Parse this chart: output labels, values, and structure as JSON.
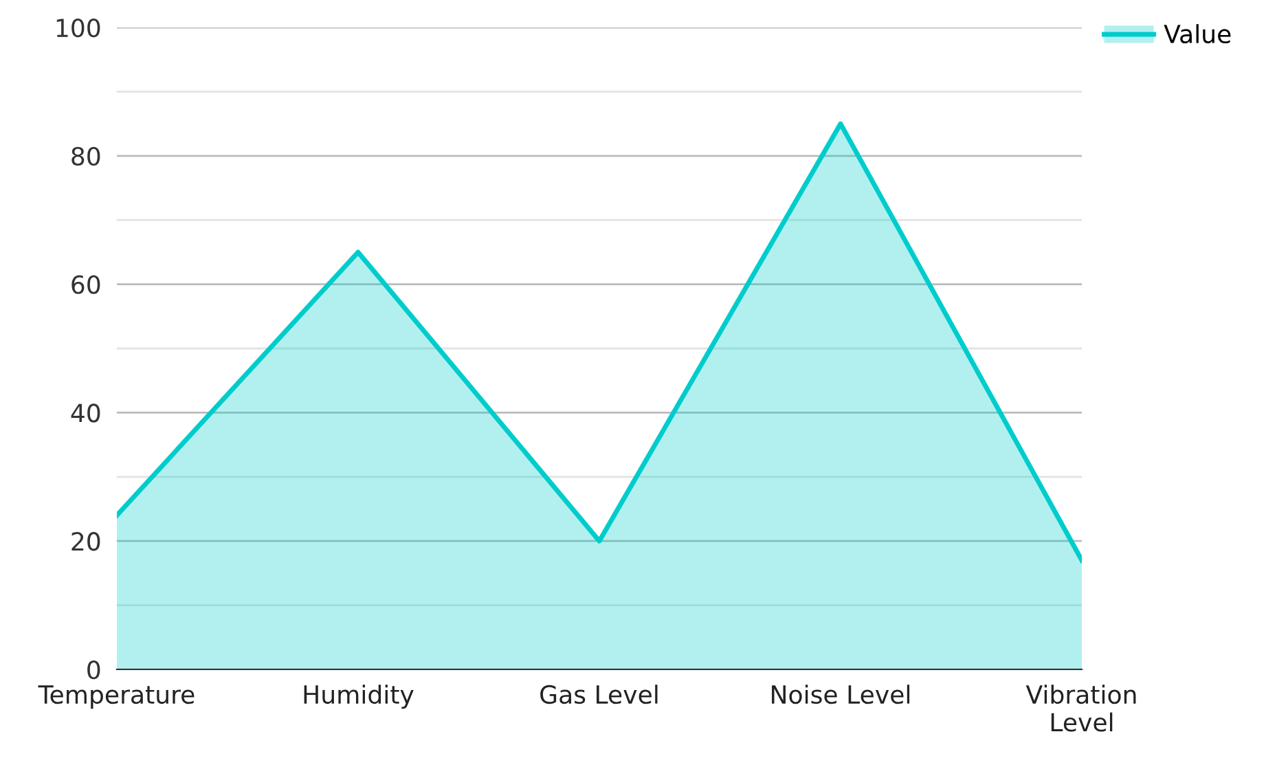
{
  "chart_data": {
    "type": "area",
    "categories": [
      "Temperature",
      "Humidity",
      "Gas Level",
      "Noise Level",
      "Vibration Level"
    ],
    "series": [
      {
        "name": "Value",
        "color": "#00cccc",
        "values": [
          24,
          65,
          20,
          85,
          17
        ]
      }
    ],
    "ylim": [
      0,
      100
    ],
    "yticks": [
      0,
      {
        "value": 10,
        "label": null
      },
      20,
      {
        "value": 30,
        "label": null
      },
      40,
      {
        "value": 50,
        "label": null
      },
      60,
      {
        "value": 70,
        "label": null
      },
      80,
      {
        "value": 90,
        "label": null
      },
      100
    ],
    "grid": "y",
    "legend": "top right",
    "marker": "none",
    "line_style": "solid"
  }
}
